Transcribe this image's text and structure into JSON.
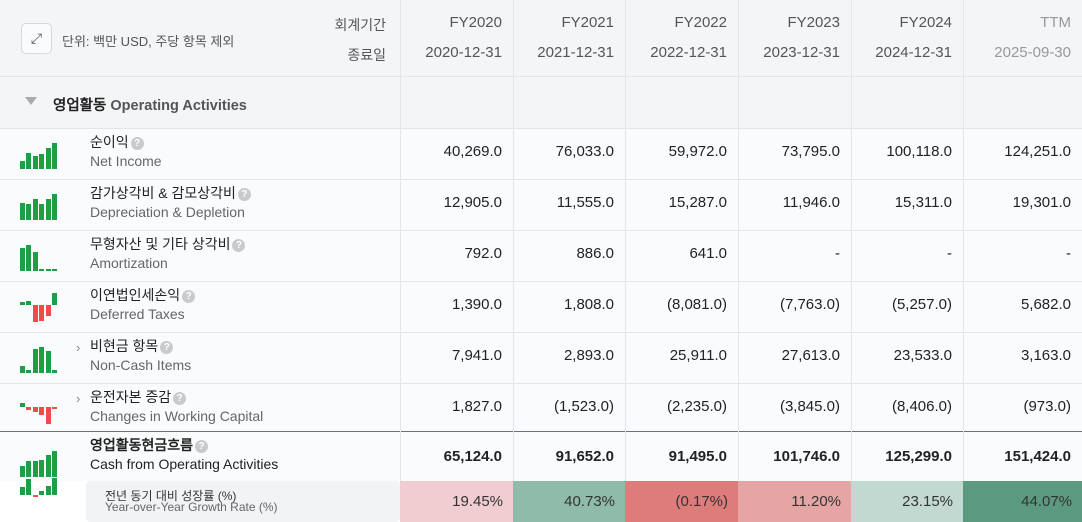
{
  "header": {
    "unit_note": "단위: 백만 USD, 주당 항목 제외",
    "period_label": "회계기간",
    "end_date_label": "종료일",
    "columns": [
      {
        "period": "FY2020",
        "date": "2020-12-31"
      },
      {
        "period": "FY2021",
        "date": "2021-12-31"
      },
      {
        "period": "FY2022",
        "date": "2022-12-31"
      },
      {
        "period": "FY2023",
        "date": "2023-12-31"
      },
      {
        "period": "FY2024",
        "date": "2024-12-31"
      },
      {
        "period": "TTM",
        "date": "2025-09-30"
      }
    ]
  },
  "section": {
    "title_ko": "영업활동",
    "title_en": "Operating Activities"
  },
  "rows": [
    {
      "ko": "순이익",
      "en": "Net Income",
      "values": [
        "40,269.0",
        "76,033.0",
        "59,972.0",
        "73,795.0",
        "100,118.0",
        "124,251.0"
      ],
      "expandable": false,
      "spark": [
        40269,
        76033,
        59972,
        73795,
        100118,
        124251
      ]
    },
    {
      "ko": "감가상각비 & 감모상각비",
      "en": "Depreciation & Depletion",
      "values": [
        "12,905.0",
        "11,555.0",
        "15,287.0",
        "11,946.0",
        "15,311.0",
        "19,301.0"
      ],
      "expandable": false,
      "spark": [
        12905,
        11555,
        15287,
        11946,
        15311,
        19301
      ]
    },
    {
      "ko": "무형자산 및 기타 상각비",
      "en": "Amortization",
      "values": [
        "792.0",
        "886.0",
        "641.0",
        "-",
        "-",
        "-"
      ],
      "expandable": false,
      "spark": [
        792,
        886,
        641,
        0,
        0,
        0
      ]
    },
    {
      "ko": "이연법인세손익",
      "en": "Deferred Taxes",
      "values": [
        "1,390.0",
        "1,808.0",
        "(8,081.0)",
        "(7,763.0)",
        "(5,257.0)",
        "5,682.0"
      ],
      "expandable": false,
      "spark": [
        1390,
        1808,
        -8081,
        -7763,
        -5257,
        5682
      ]
    },
    {
      "ko": "비현금 항목",
      "en": "Non-Cash Items",
      "values": [
        "7,941.0",
        "2,893.0",
        "25,911.0",
        "27,613.0",
        "23,533.0",
        "3,163.0"
      ],
      "expandable": true,
      "spark": [
        7941,
        2893,
        25911,
        27613,
        23533,
        3163
      ]
    },
    {
      "ko": "운전자본 증감",
      "en": "Changes in Working Capital",
      "values": [
        "1,827.0",
        "(1,523.0)",
        "(2,235.0)",
        "(3,845.0)",
        "(8,406.0)",
        "(973.0)"
      ],
      "expandable": true,
      "spark": [
        1827,
        -1523,
        -2235,
        -3845,
        -8406,
        -973
      ]
    }
  ],
  "total": {
    "ko": "영업활동현금흐름",
    "en": "Cash from Operating Activities",
    "values": [
      "65,124.0",
      "91,652.0",
      "91,495.0",
      "101,746.0",
      "125,299.0",
      "151,424.0"
    ],
    "spark": [
      65124,
      91652,
      91495,
      101746,
      125299,
      151424
    ]
  },
  "growth": {
    "ko": "전년 동기 대비 성장률 (%)",
    "en": "Year-over-Year Growth Rate (%)",
    "values": [
      "19.45%",
      "40.73%",
      "(0.17%)",
      "11.20%",
      "23.15%",
      "44.07%"
    ],
    "spark": [
      19.45,
      40.73,
      -0.17,
      11.2,
      23.15,
      44.07
    ],
    "colors": [
      "#f0cdd0",
      "#8fbbab",
      "#de7b7b",
      "#e6a5a5",
      "#c2d9d2",
      "#5b9a80"
    ]
  },
  "colors": {
    "positive": "#1e9e45",
    "negative": "#ef4b4b"
  }
}
